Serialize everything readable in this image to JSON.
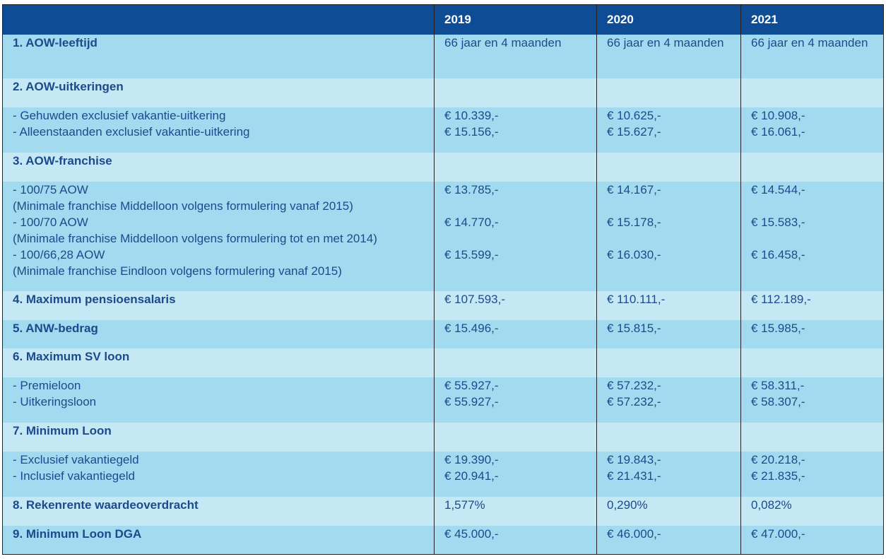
{
  "header": {
    "years": [
      "2019",
      "2020",
      "2021"
    ]
  },
  "rows": [
    {
      "label": [
        "1. AOW-leeftijd"
      ],
      "values": [
        [
          "66 jaar en 4 maanden"
        ],
        [
          "66 jaar en 4 maanden"
        ],
        [
          "66 jaar en 4 maanden"
        ]
      ]
    },
    {
      "label": [
        "2. AOW-uitkeringen"
      ]
    },
    {
      "label": [
        "- Gehuwden exclusief vakantie-uitkering",
        "- Alleenstaanden exclusief vakantie-uitkering"
      ],
      "values": [
        [
          "€ 10.339,-",
          "€ 15.156,-"
        ],
        [
          "€ 10.625,-",
          "€ 15.627,-"
        ],
        [
          "€ 10.908,-",
          "€ 16.061,-"
        ]
      ]
    },
    {
      "label": [
        "3. AOW-franchise"
      ]
    },
    {
      "label": [
        "- 100/75 AOW",
        "(Minimale franchise Middelloon volgens formulering vanaf 2015)",
        "- 100/70 AOW",
        "(Minimale franchise Middelloon volgens formulering tot en met 2014)",
        "- 100/66,28 AOW",
        "(Minimale franchise Eindloon volgens formulering vanaf 2015)"
      ],
      "values": [
        [
          "€ 13.785,-",
          "€ 14.770,-",
          "€ 15.599,-"
        ],
        [
          "€ 14.167,-",
          "€ 15.178,-",
          "€ 16.030,-"
        ],
        [
          "€ 14.544,-",
          "€ 15.583,-",
          "€ 16.458,-"
        ]
      ]
    },
    {
      "label": [
        "4. Maximum pensioensalaris"
      ],
      "values": [
        [
          "€ 107.593,-"
        ],
        [
          "€ 110.111,-"
        ],
        [
          "€ 112.189,-"
        ]
      ]
    },
    {
      "label": [
        "5. ANW-bedrag"
      ],
      "values": [
        [
          "€ 15.496,-"
        ],
        [
          "€ 15.815,-"
        ],
        [
          "€ 15.985,-"
        ]
      ]
    },
    {
      "label": [
        "6. Maximum SV loon"
      ]
    },
    {
      "label": [
        "- Premieloon",
        "- Uitkeringsloon"
      ],
      "values": [
        [
          "€ 55.927,-",
          "€ 55.927,-"
        ],
        [
          "€ 57.232,-",
          "€ 57.232,-"
        ],
        [
          "€ 58.311,-",
          "€ 58.307,-"
        ]
      ]
    },
    {
      "label": [
        "7. Minimum Loon"
      ]
    },
    {
      "label": [
        "- Exclusief vakantiegeld",
        "- Inclusief vakantiegeld"
      ],
      "values": [
        [
          "€ 19.390,-",
          "€ 20.941,-"
        ],
        [
          "€ 19.843,-",
          "€ 21.431,-"
        ],
        [
          "€ 20.218,-",
          "€ 21.835,-"
        ]
      ]
    },
    {
      "label": [
        "8. Rekenrente waardeoverdracht"
      ],
      "values": [
        [
          "1,577%"
        ],
        [
          "0,290%"
        ],
        [
          "0,082%"
        ]
      ]
    },
    {
      "label": [
        "9. Minimum Loon DGA"
      ],
      "values": [
        [
          "€ 45.000,-"
        ],
        [
          "€ 46.000,-"
        ],
        [
          "€ 47.000,-"
        ]
      ]
    }
  ],
  "colors": {
    "header_bg": "#0f4c96",
    "row_dark": "#a2dbef",
    "row_light": "#c4e8f4",
    "text": "#1d4a8c"
  }
}
